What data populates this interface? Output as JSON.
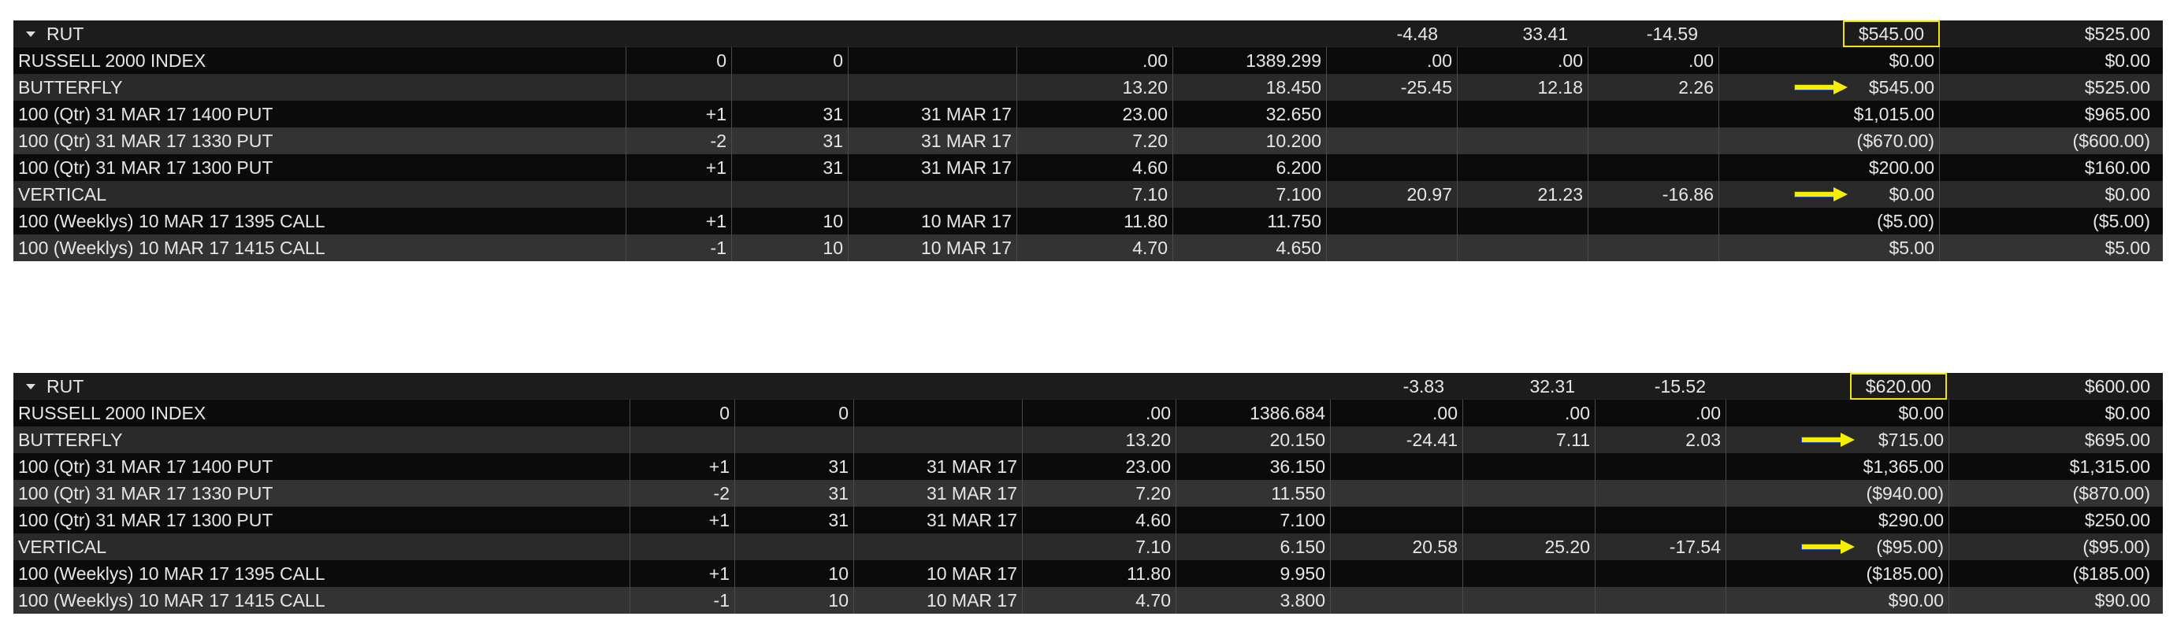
{
  "panels": [
    {
      "header": {
        "symbol": "RUT",
        "c8": "-4.48",
        "c9": "33.41",
        "c10": "-14.59",
        "c11": "$545.00",
        "c12": "$525.00"
      },
      "rows": [
        {
          "c0": "RUSSELL 2000 INDEX",
          "c1": "0",
          "c2": "0",
          "c3": "",
          "c4": ".00",
          "c5": "1389.299",
          "c6": ".00",
          "c7": ".00",
          "c8": ".00",
          "c9": "$0.00",
          "c10": "$0.00"
        },
        {
          "c0": "BUTTERFLY",
          "c1": "",
          "c2": "",
          "c3": "",
          "c4": "13.20",
          "c5": "18.450",
          "c6": "-25.45",
          "c7": "12.18",
          "c8": "2.26",
          "c9": "$545.00",
          "c10": "$525.00"
        },
        {
          "c0": "100 (Qtr) 31 MAR 17 1400 PUT",
          "c1": "+1",
          "c2": "31",
          "c3": "31 MAR 17",
          "c4": "23.00",
          "c5": "32.650",
          "c6": "",
          "c7": "",
          "c8": "",
          "c9": "$1,015.00",
          "c10": "$965.00"
        },
        {
          "c0": "100 (Qtr) 31 MAR 17 1330 PUT",
          "c1": "-2",
          "c2": "31",
          "c3": "31 MAR 17",
          "c4": "7.20",
          "c5": "10.200",
          "c6": "",
          "c7": "",
          "c8": "",
          "c9": "($670.00)",
          "c10": "($600.00)"
        },
        {
          "c0": "100 (Qtr) 31 MAR 17 1300 PUT",
          "c1": "+1",
          "c2": "31",
          "c3": "31 MAR 17",
          "c4": "4.60",
          "c5": "6.200",
          "c6": "",
          "c7": "",
          "c8": "",
          "c9": "$200.00",
          "c10": "$160.00"
        },
        {
          "c0": "VERTICAL",
          "c1": "",
          "c2": "",
          "c3": "",
          "c4": "7.10",
          "c5": "7.100",
          "c6": "20.97",
          "c7": "21.23",
          "c8": "-16.86",
          "c9": "$0.00",
          "c10": "$0.00"
        },
        {
          "c0": "100 (Weeklys) 10 MAR 17 1395 CALL",
          "c1": "+1",
          "c2": "10",
          "c3": "10 MAR 17",
          "c4": "11.80",
          "c5": "11.750",
          "c6": "",
          "c7": "",
          "c8": "",
          "c9": "($5.00)",
          "c10": "($5.00)"
        },
        {
          "c0": "100 (Weeklys) 10 MAR 17 1415 CALL",
          "c1": "-1",
          "c2": "10",
          "c3": "10 MAR 17",
          "c4": "4.70",
          "c5": "4.650",
          "c6": "",
          "c7": "",
          "c8": "",
          "c9": "$5.00",
          "c10": "$5.00"
        }
      ]
    },
    {
      "header": {
        "symbol": "RUT",
        "c8": "-3.83",
        "c9": "32.31",
        "c10": "-15.52",
        "c11": "$620.00",
        "c12": "$600.00"
      },
      "rows": [
        {
          "c0": "RUSSELL 2000 INDEX",
          "c1": "0",
          "c2": "0",
          "c3": "",
          "c4": ".00",
          "c5": "1386.684",
          "c6": ".00",
          "c7": ".00",
          "c8": ".00",
          "c9": "$0.00",
          "c10": "$0.00"
        },
        {
          "c0": "BUTTERFLY",
          "c1": "",
          "c2": "",
          "c3": "",
          "c4": "13.20",
          "c5": "20.150",
          "c6": "-24.41",
          "c7": "7.11",
          "c8": "2.03",
          "c9": "$715.00",
          "c10": "$695.00"
        },
        {
          "c0": "100 (Qtr) 31 MAR 17 1400 PUT",
          "c1": "+1",
          "c2": "31",
          "c3": "31 MAR 17",
          "c4": "23.00",
          "c5": "36.150",
          "c6": "",
          "c7": "",
          "c8": "",
          "c9": "$1,365.00",
          "c10": "$1,315.00"
        },
        {
          "c0": "100 (Qtr) 31 MAR 17 1330 PUT",
          "c1": "-2",
          "c2": "31",
          "c3": "31 MAR 17",
          "c4": "7.20",
          "c5": "11.550",
          "c6": "",
          "c7": "",
          "c8": "",
          "c9": "($940.00)",
          "c10": "($870.00)"
        },
        {
          "c0": "100 (Qtr) 31 MAR 17 1300 PUT",
          "c1": "+1",
          "c2": "31",
          "c3": "31 MAR 17",
          "c4": "4.60",
          "c5": "7.100",
          "c6": "",
          "c7": "",
          "c8": "",
          "c9": "$290.00",
          "c10": "$250.00"
        },
        {
          "c0": "VERTICAL",
          "c1": "",
          "c2": "",
          "c3": "",
          "c4": "7.10",
          "c5": "6.150",
          "c6": "20.58",
          "c7": "25.20",
          "c8": "-17.54",
          "c9": "($95.00)",
          "c10": "($95.00)"
        },
        {
          "c0": "100 (Weeklys) 10 MAR 17 1395 CALL",
          "c1": "+1",
          "c2": "10",
          "c3": "10 MAR 17",
          "c4": "11.80",
          "c5": "9.950",
          "c6": "",
          "c7": "",
          "c8": "",
          "c9": "($185.00)",
          "c10": "($185.00)"
        },
        {
          "c0": "100 (Weeklys) 10 MAR 17 1415 CALL",
          "c1": "-1",
          "c2": "10",
          "c3": "10 MAR 17",
          "c4": "4.70",
          "c5": "3.800",
          "c6": "",
          "c7": "",
          "c8": "",
          "c9": "$90.00",
          "c10": "$90.00"
        }
      ]
    }
  ]
}
